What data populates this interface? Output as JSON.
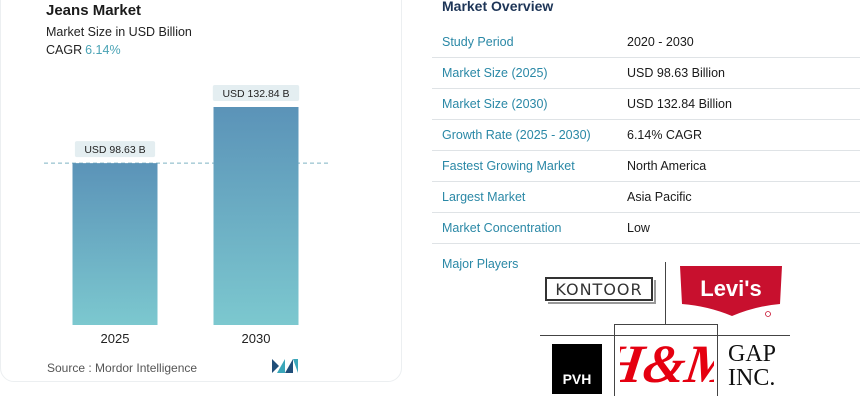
{
  "chart_card": {
    "title": "Jeans Market",
    "subtitle": "Market Size in USD Billion",
    "cagr_label": "CAGR",
    "cagr_value": "6.14%",
    "source": "Source :  Mordor Intelligence",
    "source_logo_icon": "mordor-intelligence-logo"
  },
  "chart_data": {
    "type": "bar",
    "categories": [
      "2025",
      "2030"
    ],
    "values": [
      98.63,
      132.84
    ],
    "data_labels": [
      "USD 98.63 B",
      "USD 132.84 B"
    ],
    "title": "Jeans Market",
    "subtitle": "Market Size in USD Billion",
    "xlabel": "",
    "ylabel": "",
    "ylim": [
      0,
      132.84
    ],
    "reference_line": "dashed line at first bar value",
    "bar_color_top": "#5b93b8",
    "bar_color_bottom": "#7cc8cf",
    "grid": false
  },
  "overview": {
    "title": "Market Overview",
    "rows": [
      {
        "label": "Study Period",
        "value": "2020 - 2030"
      },
      {
        "label": "Market Size (2025)",
        "value": "USD 98.63 Billion"
      },
      {
        "label": "Market Size (2030)",
        "value": "USD 132.84 Billion"
      },
      {
        "label": "Growth Rate (2025 - 2030)",
        "value": "6.14% CAGR"
      },
      {
        "label": "Fastest Growing Market",
        "value": "North America"
      },
      {
        "label": "Largest Market",
        "value": "Asia Pacific"
      },
      {
        "label": "Market Concentration",
        "value": "Low"
      }
    ],
    "players_label": "Major Players",
    "players": {
      "kontoor": "KONTOOR",
      "levis": "Levi's",
      "pvh": "PVH",
      "hm": "H&M",
      "gap_line1": "GAP",
      "gap_line2": "INC."
    }
  },
  "colors": {
    "accent": "#2a88a6",
    "cagr": "#4aa3b5",
    "levis_red": "#c8102e",
    "hm_red": "#e50010"
  }
}
